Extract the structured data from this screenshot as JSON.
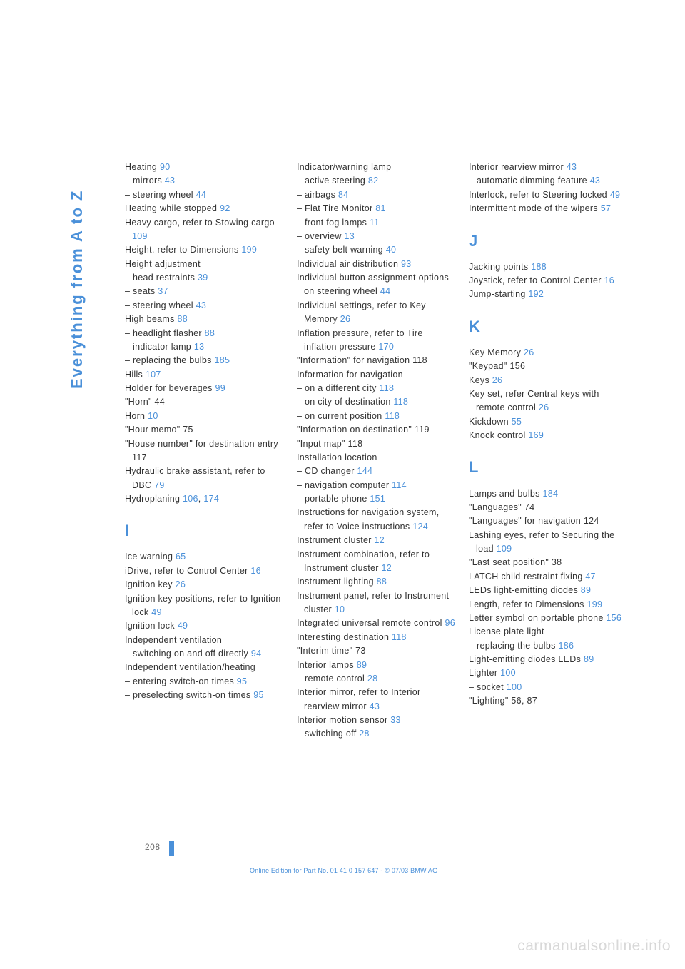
{
  "sidebar_title": "Everything from A to Z",
  "page_number": "208",
  "footer": "Online Edition for Part No. 01 41 0 157 647 - © 07/03 BMW AG",
  "watermark": "carmanualsonline.info",
  "columns": [
    {
      "blocks": [
        {
          "type": "entries",
          "items": [
            {
              "t": "Heating ",
              "r": "90"
            },
            {
              "t": "– mirrors ",
              "r": "43",
              "sub": true
            },
            {
              "t": "– steering wheel ",
              "r": "44",
              "sub": true
            },
            {
              "t": "Heating while stopped ",
              "r": "92"
            },
            {
              "t": "Heavy cargo, refer to Stowing cargo ",
              "r": "109",
              "sub": true,
              "indent": true
            },
            {
              "t": "Height, refer to Dimensions ",
              "r": "199",
              "sub": true,
              "indent": true
            },
            {
              "t": "Height adjustment"
            },
            {
              "t": "– head restraints ",
              "r": "39",
              "sub": true
            },
            {
              "t": "– seats ",
              "r": "37",
              "sub": true
            },
            {
              "t": "– steering wheel ",
              "r": "43",
              "sub": true
            },
            {
              "t": "High beams ",
              "r": "88"
            },
            {
              "t": "– headlight flasher ",
              "r": "88",
              "sub": true
            },
            {
              "t": "– indicator lamp ",
              "r": "13",
              "sub": true
            },
            {
              "t": "– replacing the bulbs ",
              "r": "185",
              "sub": true
            },
            {
              "t": "Hills ",
              "r": "107"
            },
            {
              "t": "Holder for beverages ",
              "r": "99"
            },
            {
              "t": "\"Horn\" 44"
            },
            {
              "t": "Horn ",
              "r": "10"
            },
            {
              "t": "\"Hour memo\" 75"
            },
            {
              "t": "\"House number\" for destination entry 117",
              "sub": true,
              "indent": true
            },
            {
              "t": "Hydraulic brake assistant, refer to DBC ",
              "r": "79",
              "sub": true,
              "indent": true
            },
            {
              "t": "Hydroplaning ",
              "r": "106",
              "r2": ", ",
              "r3": "174"
            }
          ]
        },
        {
          "type": "letter",
          "value": "I"
        },
        {
          "type": "entries",
          "items": [
            {
              "t": "Ice warning ",
              "r": "65"
            },
            {
              "t": "iDrive, refer to Control Center ",
              "r": "16",
              "sub": true,
              "indent": true
            },
            {
              "t": "Ignition key ",
              "r": "26"
            },
            {
              "t": "Ignition key positions, refer to Ignition lock ",
              "r": "49",
              "sub": true,
              "indent": true
            },
            {
              "t": "Ignition lock ",
              "r": "49"
            },
            {
              "t": "Independent ventilation"
            },
            {
              "t": "– switching on and off directly ",
              "r": "94",
              "sub": true,
              "indent": true
            },
            {
              "t": "Independent ventilation/heating",
              "sub": true,
              "indent": true
            },
            {
              "t": "– entering switch-on times ",
              "r": "95",
              "sub": true,
              "indent": true
            },
            {
              "t": "– preselecting switch-on times ",
              "r": "95",
              "sub": true,
              "indent": true
            }
          ]
        }
      ]
    },
    {
      "blocks": [
        {
          "type": "entries",
          "items": [
            {
              "t": "Indicator/warning lamp"
            },
            {
              "t": "– active steering ",
              "r": "82",
              "sub": true
            },
            {
              "t": "– airbags ",
              "r": "84",
              "sub": true
            },
            {
              "t": "– Flat Tire Monitor ",
              "r": "81",
              "sub": true
            },
            {
              "t": "– front fog lamps ",
              "r": "11",
              "sub": true
            },
            {
              "t": "– overview ",
              "r": "13",
              "sub": true
            },
            {
              "t": "– safety belt warning ",
              "r": "40",
              "sub": true
            },
            {
              "t": "Individual air distribution ",
              "r": "93"
            },
            {
              "t": "Individual button assignment options on steering wheel ",
              "r": "44",
              "sub": true,
              "indent": true
            },
            {
              "t": "Individual settings, refer to Key Memory ",
              "r": "26",
              "sub": true,
              "indent": true
            },
            {
              "t": "Inflation pressure, refer to Tire inflation pressure ",
              "r": "170",
              "sub": true,
              "indent": true
            },
            {
              "t": "\"Information\" for navigation 118",
              "sub": true,
              "indent": true
            },
            {
              "t": "Information for navigation"
            },
            {
              "t": "– on a different city ",
              "r": "118",
              "sub": true
            },
            {
              "t": "– on city of destination ",
              "r": "118",
              "sub": true
            },
            {
              "t": "– on current position ",
              "r": "118",
              "sub": true
            },
            {
              "t": "\"Information on destination\" 119",
              "sub": true,
              "indent": true
            },
            {
              "t": "\"Input map\" 118"
            },
            {
              "t": "Installation location"
            },
            {
              "t": "– CD changer ",
              "r": "144",
              "sub": true
            },
            {
              "t": "– navigation computer ",
              "r": "114",
              "sub": true
            },
            {
              "t": "– portable phone ",
              "r": "151",
              "sub": true
            },
            {
              "t": "Instructions for navigation system, refer to Voice instructions ",
              "r": "124",
              "sub": true,
              "indent": true
            },
            {
              "t": "Instrument cluster ",
              "r": "12"
            },
            {
              "t": "Instrument combination, refer to Instrument cluster ",
              "r": "12",
              "sub": true,
              "indent": true
            },
            {
              "t": "Instrument lighting ",
              "r": "88"
            },
            {
              "t": "Instrument panel, refer to Instrument cluster ",
              "r": "10",
              "sub": true,
              "indent": true
            },
            {
              "t": "Integrated universal remote control ",
              "r": "96",
              "sub": true,
              "indent": true
            },
            {
              "t": "Interesting destination ",
              "r": "118"
            },
            {
              "t": "\"Interim time\" 73"
            },
            {
              "t": "Interior lamps ",
              "r": "89"
            },
            {
              "t": "– remote control ",
              "r": "28",
              "sub": true
            },
            {
              "t": "Interior mirror, refer to Interior rearview mirror ",
              "r": "43",
              "sub": true,
              "indent": true
            },
            {
              "t": "Interior motion sensor ",
              "r": "33"
            },
            {
              "t": "– switching off ",
              "r": "28",
              "sub": true
            }
          ]
        }
      ]
    },
    {
      "blocks": [
        {
          "type": "entries",
          "items": [
            {
              "t": "Interior rearview mirror ",
              "r": "43"
            },
            {
              "t": "– automatic dimming feature ",
              "r": "43",
              "sub": true,
              "indent": true
            },
            {
              "t": "Interlock, refer to Steering locked ",
              "r": "49",
              "sub": true,
              "indent": true
            },
            {
              "t": "Intermittent mode of the wipers ",
              "r": "57",
              "sub": true,
              "indent": true
            }
          ]
        },
        {
          "type": "letter",
          "value": "J"
        },
        {
          "type": "entries",
          "items": [
            {
              "t": "Jacking points ",
              "r": "188"
            },
            {
              "t": "Joystick, refer to Control Center ",
              "r": "16",
              "sub": true,
              "indent": true
            },
            {
              "t": "Jump-starting ",
              "r": "192"
            }
          ]
        },
        {
          "type": "letter",
          "value": "K"
        },
        {
          "type": "entries",
          "items": [
            {
              "t": "Key Memory ",
              "r": "26"
            },
            {
              "t": "\"Keypad\" 156"
            },
            {
              "t": "Keys ",
              "r": "26"
            },
            {
              "t": "Key set, refer Central keys with remote control ",
              "r": "26",
              "sub": true,
              "indent": true
            },
            {
              "t": "Kickdown ",
              "r": "55"
            },
            {
              "t": "Knock control ",
              "r": "169"
            }
          ]
        },
        {
          "type": "letter",
          "value": "L"
        },
        {
          "type": "entries",
          "items": [
            {
              "t": "Lamps and bulbs ",
              "r": "184"
            },
            {
              "t": "\"Languages\" 74"
            },
            {
              "t": "\"Languages\" for navigation 124",
              "sub": true,
              "indent": true
            },
            {
              "t": "Lashing eyes, refer to Securing the load ",
              "r": "109",
              "sub": true,
              "indent": true
            },
            {
              "t": "\"Last seat position\" 38"
            },
            {
              "t": "LATCH child-restraint fixing ",
              "r": "47",
              "sub": true,
              "indent": true
            },
            {
              "t": "LEDs light-emitting diodes ",
              "r": "89",
              "sub": true,
              "indent": true
            },
            {
              "t": "Length, refer to Dimensions ",
              "r": "199",
              "sub": true,
              "indent": true
            },
            {
              "t": "Letter symbol on portable phone ",
              "r": "156",
              "sub": true,
              "indent": true
            },
            {
              "t": "License plate light"
            },
            {
              "t": "– replacing the bulbs ",
              "r": "186",
              "sub": true
            },
            {
              "t": "Light-emitting diodes LEDs ",
              "r": "89",
              "sub": true,
              "indent": true
            },
            {
              "t": "Lighter ",
              "r": "100"
            },
            {
              "t": "– socket ",
              "r": "100",
              "sub": true
            },
            {
              "t": "\"Lighting\" 56, 87"
            }
          ]
        }
      ]
    }
  ]
}
